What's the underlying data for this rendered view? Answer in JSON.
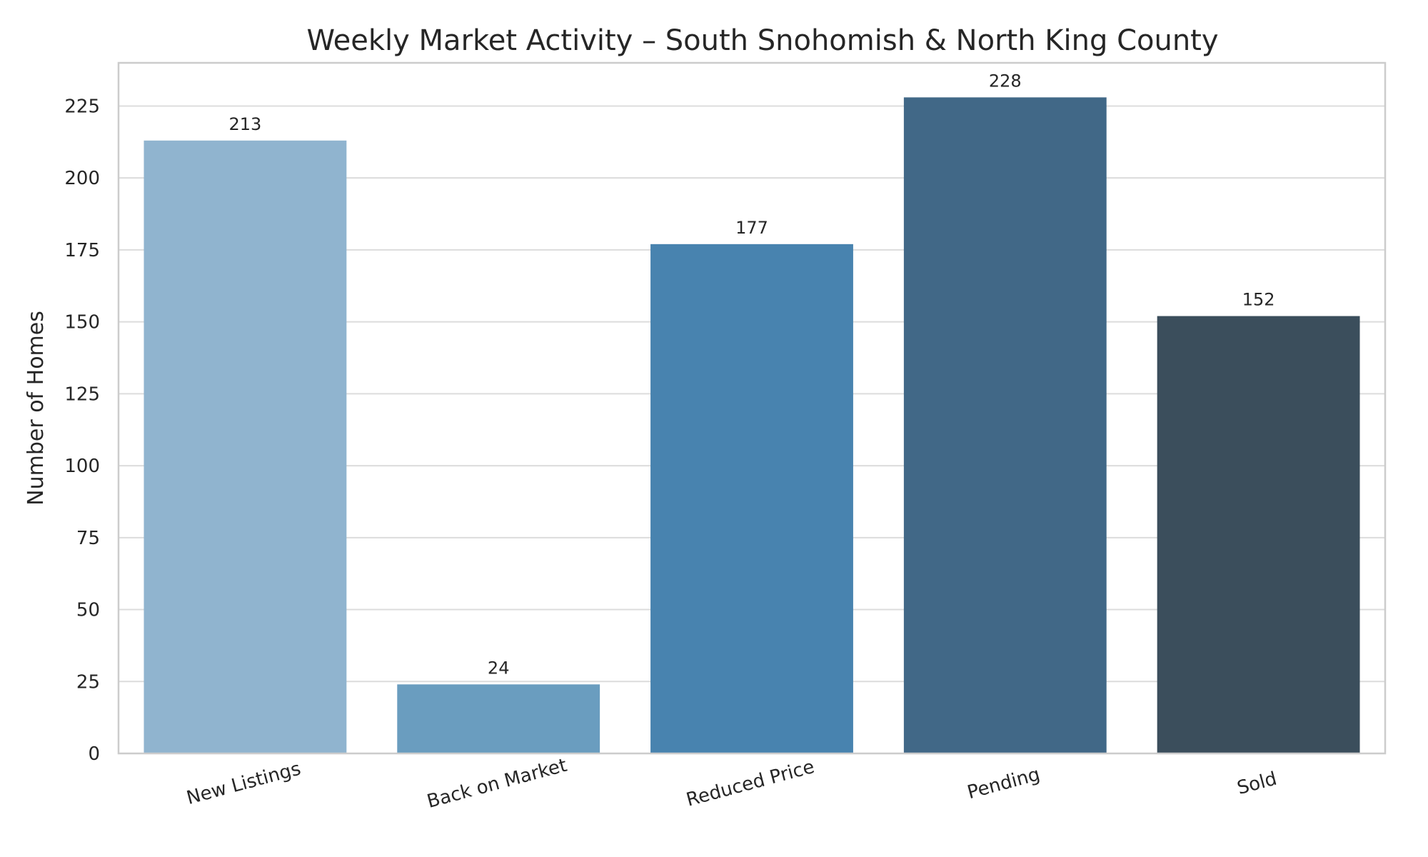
{
  "chart_data": {
    "type": "bar",
    "title": "Weekly Market Activity – South Snohomish & North King County",
    "xlabel": "",
    "ylabel": "Number of Homes",
    "categories": [
      "New Listings",
      "Back on Market",
      "Reduced Price",
      "Pending",
      "Sold"
    ],
    "values": [
      213,
      24,
      177,
      228,
      152
    ],
    "data_labels": [
      "213",
      "24",
      "177",
      "228",
      "152"
    ],
    "bar_colors": [
      "#90b4cf",
      "#6a9dbf",
      "#4883af",
      "#416887",
      "#3b4e5c"
    ],
    "ylim": [
      0,
      240
    ],
    "yticks": [
      0,
      25,
      50,
      75,
      100,
      125,
      150,
      175,
      200,
      225
    ],
    "ytick_labels": [
      "0",
      "25",
      "50",
      "75",
      "100",
      "125",
      "150",
      "175",
      "200",
      "225"
    ],
    "grid": "horizontal",
    "legend": "none"
  }
}
